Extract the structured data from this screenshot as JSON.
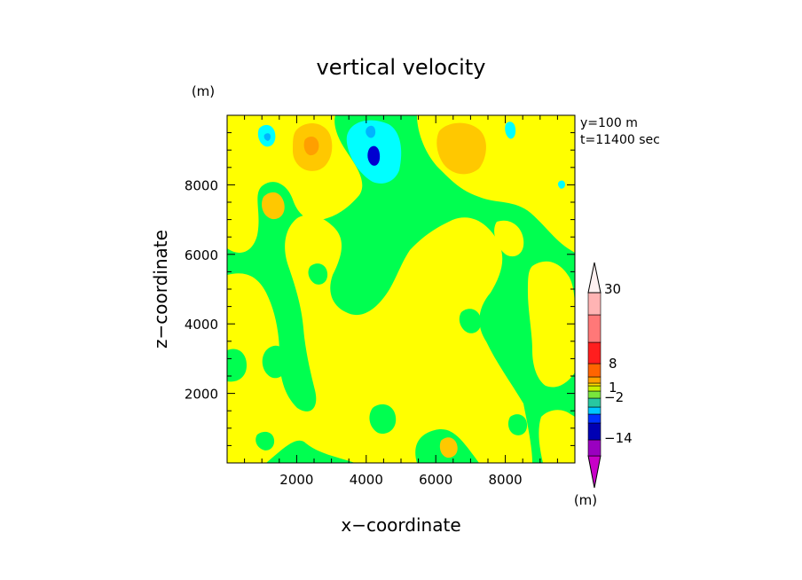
{
  "chart_data": {
    "type": "heatmap",
    "title": "vertical velocity",
    "xlabel": "x−coordinate",
    "ylabel": "z−coordinate",
    "x_unit": "(m)",
    "y_unit": "(m)",
    "cbar_unit": "(m)",
    "info_lines": [
      "y=100  m",
      "t=11400 sec"
    ],
    "xlim": [
      0,
      10000
    ],
    "ylim": [
      0,
      10000
    ],
    "xticks": [
      2000,
      4000,
      6000,
      8000
    ],
    "yticks": [
      2000,
      4000,
      6000,
      8000
    ],
    "colorbar": {
      "levels": [
        {
          "color": "#c800c8"
        },
        {
          "color": "#9a00c0"
        },
        {
          "color": "#0000b4"
        },
        {
          "color": "#0032ff"
        },
        {
          "color": "#00c8ff"
        },
        {
          "color": "#28c8a0"
        },
        {
          "color": "#78e63c"
        },
        {
          "color": "#c8f000"
        },
        {
          "color": "#ffdc00"
        },
        {
          "color": "#ffa000"
        },
        {
          "color": "#ff6400"
        },
        {
          "color": "#ff1e1e"
        },
        {
          "color": "#ff7878"
        },
        {
          "color": "#ffb4b4"
        },
        {
          "color": "#fff0f0"
        }
      ],
      "labels": [
        "30",
        "8",
        "1",
        "−2",
        "−14"
      ]
    },
    "field_colors": {
      "green": "#00ff50",
      "yellow": "#ffff00",
      "orange": "#ffc800",
      "orange_dark": "#ff9f00",
      "cyan": "#00ffff",
      "cyan_mid": "#00b4ff",
      "blue": "#0000d0"
    }
  }
}
